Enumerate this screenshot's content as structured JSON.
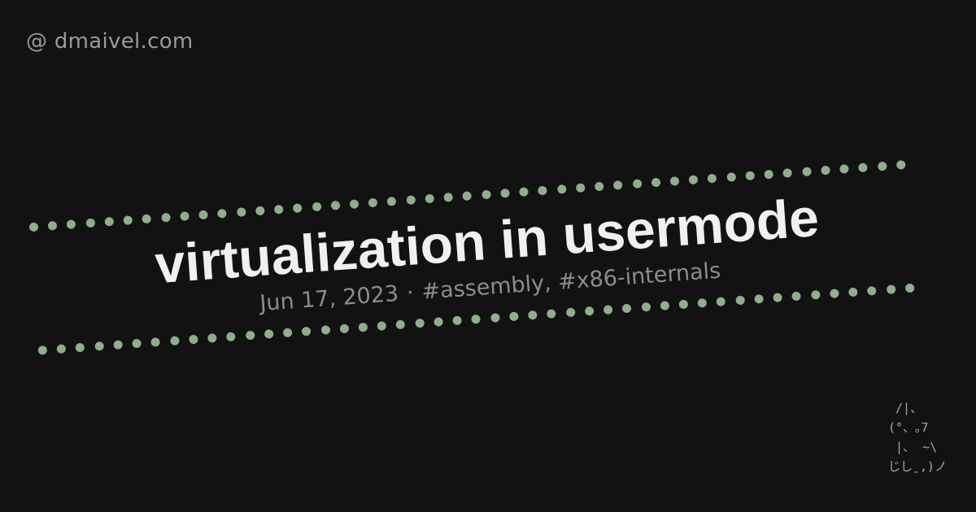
{
  "site": {
    "label": "@ dmaivel.com"
  },
  "post": {
    "title": "virtualization in usermode",
    "date": "Jun 17, 2023",
    "separator": "·",
    "tags": [
      "#assembly,",
      "#x86-internals"
    ]
  },
  "decoration": {
    "dot_color": "#8fae8b",
    "background": "#121212",
    "ascii_cat": " /|、\n(°、｡7\n |、 ~\\\nじしˍ,)ノ"
  }
}
